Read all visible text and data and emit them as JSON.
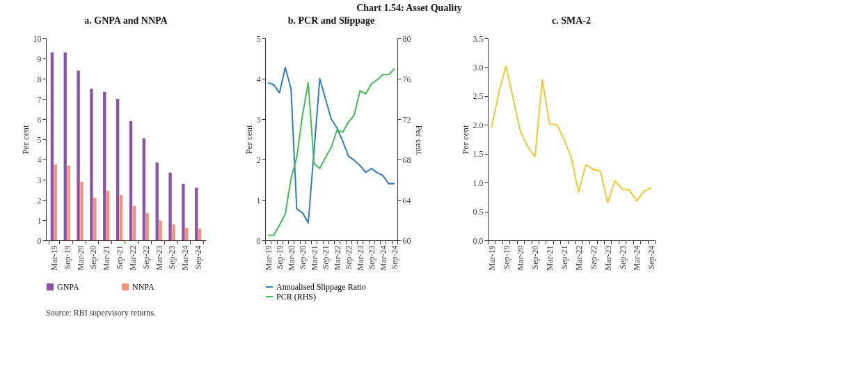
{
  "chart_data": [
    {
      "type": "bar",
      "title": "a. GNPA and NNPA",
      "ylabel": "Per cent",
      "annotations": [
        "Chart 1.54: Asset Quality",
        "Source: RBI supervisory returns."
      ],
      "categories": [
        "Mar-19",
        "Sep-19",
        "Mar-20",
        "Sep-20",
        "Mar-21",
        "Sep-21",
        "Mar-22",
        "Sep-22",
        "Mar-23",
        "Sep-23",
        "Mar-24",
        "Sep-24"
      ],
      "series": [
        {
          "name": "GNPA",
          "color": "#8a55a8",
          "values": [
            9.3,
            9.3,
            8.4,
            7.5,
            7.35,
            7.0,
            5.9,
            5.05,
            3.85,
            3.35,
            2.8,
            2.6
          ]
        },
        {
          "name": "NNPA",
          "color": "#f4917a",
          "values": [
            3.75,
            3.7,
            2.9,
            2.1,
            2.45,
            2.25,
            1.7,
            1.35,
            0.98,
            0.78,
            0.62,
            0.57
          ]
        }
      ],
      "ylim": [
        0,
        10
      ],
      "yticks": [
        0,
        1,
        2,
        3,
        4,
        5,
        6,
        7,
        8,
        9,
        10
      ],
      "grid": false,
      "legend": "bottom"
    },
    {
      "type": "line",
      "title": "b. PCR and Slippage",
      "ylabel": "Per cent",
      "y2label": "Per cent",
      "categories": [
        "Mar-19",
        null,
        "Sep-19",
        null,
        "Mar-20",
        null,
        "Sep-20",
        null,
        "Mar-21",
        null,
        "Sep-21",
        null,
        "Mar-22",
        null,
        "Sep-22",
        null,
        "Mar-23",
        null,
        "Sep-23",
        null,
        "Mar-24",
        null,
        "Sep-24"
      ],
      "series": [
        {
          "name": "Annualised Slippage Ratio",
          "color": "#2a7bc8",
          "values": [
            3.9,
            3.85,
            3.65,
            4.28,
            3.75,
            0.78,
            0.68,
            0.43,
            2.2,
            4.0,
            3.5,
            3.0,
            2.78,
            2.45,
            2.08,
            1.98,
            1.85,
            1.68,
            1.78,
            1.67,
            1.6,
            1.4,
            1.4
          ]
        },
        {
          "name": "PCR (RHS)",
          "color": "#3cbf50",
          "axis": "y2",
          "values": [
            60.5,
            60.5,
            61.5,
            62.6,
            66.1,
            68.2,
            72.4,
            75.6,
            67.6,
            67.1,
            68.2,
            69.2,
            70.9,
            70.7,
            71.7,
            72.4,
            74.8,
            74.5,
            75.5,
            75.9,
            76.4,
            76.4,
            77.0
          ]
        }
      ],
      "ylim": [
        0,
        5
      ],
      "yticks": [
        0,
        1,
        2,
        3,
        4,
        5
      ],
      "y2lim": [
        60,
        80
      ],
      "y2ticks": [
        60,
        64,
        68,
        72,
        76,
        80
      ],
      "grid": false,
      "legend": "bottom"
    },
    {
      "type": "line",
      "title": "c. SMA-2",
      "ylabel": "Per cent",
      "categories": [
        "Mar-19",
        null,
        "Sep-19",
        null,
        "Mar-20",
        null,
        "Sep-20",
        null,
        "Mar-21",
        null,
        "Sep-21",
        null,
        "Mar-22",
        null,
        "Sep-22",
        null,
        "Mar-23",
        null,
        "Sep-23",
        null,
        "Mar-24",
        null,
        "Sep-24"
      ],
      "series": [
        {
          "color": "#f7c531",
          "values": [
            1.95,
            2.55,
            3.02,
            2.45,
            1.88,
            1.62,
            1.45,
            2.78,
            2.02,
            2.0,
            1.75,
            1.43,
            0.83,
            1.31,
            1.23,
            1.2,
            0.65,
            1.03,
            0.89,
            0.87,
            0.68,
            0.85,
            0.91
          ]
        }
      ],
      "ylim": [
        0,
        3.5
      ],
      "yticks": [
        {
          "value": 0,
          "label": "0.0"
        },
        {
          "value": 0.5,
          "label": "0.5"
        },
        {
          "value": 1,
          "label": "1.0"
        },
        {
          "value": 1.5,
          "label": "1.5"
        },
        {
          "value": 2,
          "label": "2.0"
        },
        {
          "value": 2.5,
          "label": "2.5"
        },
        {
          "value": 3,
          "label": "3.0"
        },
        {
          "value": 3.5,
          "label": "3.5"
        }
      ],
      "grid": false
    }
  ]
}
